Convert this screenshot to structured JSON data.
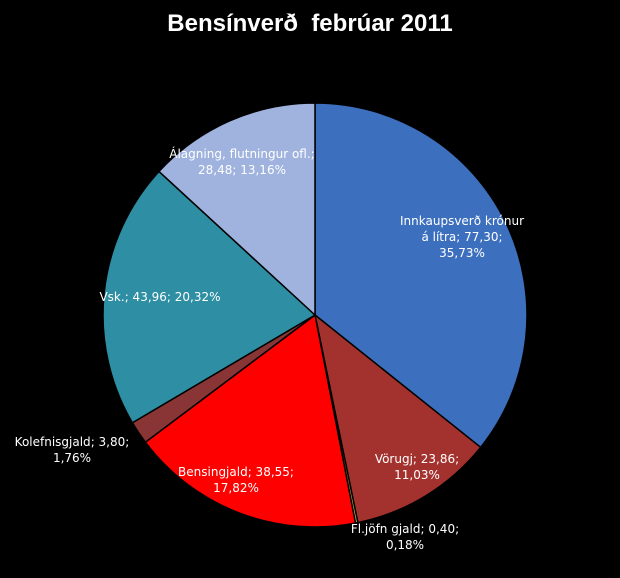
{
  "chart_data": {
    "type": "pie",
    "title": "Bensínverð  febrúar 2011",
    "categories": [
      "Innkaupsverð krónur á lítra",
      "Vörugj",
      "Fl.jöfn gjald",
      "Bensingjald",
      "Kolefnisgjald",
      "Vsk.",
      "Álagning, flutningur ofl."
    ],
    "values": [
      77.3,
      23.86,
      0.4,
      38.55,
      3.8,
      43.96,
      28.48
    ],
    "value_labels": [
      "; 77,30; 35,73%",
      "; 23,86; 11,03%",
      "; 0,40; 0,18%",
      "; 38,55; 17,82%",
      "; 3,80; 1,76%",
      "; 43,96; 20,32%",
      "; 28,48; 13,16%"
    ],
    "colors": [
      "#3d6fbf",
      "#a3322f",
      "#b8a83c",
      "#ff0000",
      "#8a3535",
      "#2e8ea3",
      "#9fb3de"
    ]
  }
}
